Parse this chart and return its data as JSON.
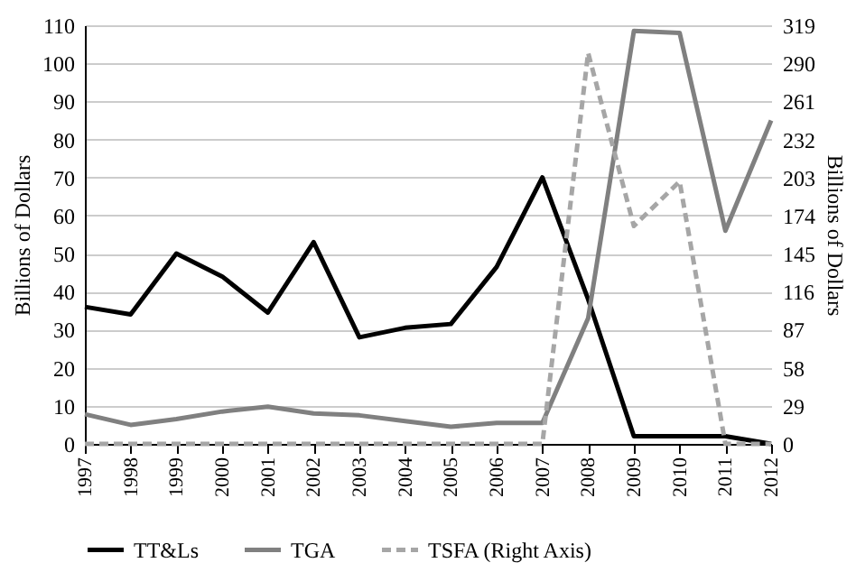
{
  "chart_data": {
    "type": "line",
    "ylabel": "Billions of Dollars",
    "y2label": "Billions of Dollars",
    "categories": [
      "1997",
      "1998",
      "1999",
      "2000",
      "2001",
      "2002",
      "2003",
      "2004",
      "2005",
      "2006",
      "2007",
      "2008",
      "2009",
      "2010",
      "2011",
      "2012"
    ],
    "series": [
      {
        "name": "TT&Ls",
        "color": "#000000",
        "line_style": "solid",
        "values": [
          36,
          34,
          50,
          44,
          34.5,
          53,
          28,
          30.5,
          31.5,
          46.5,
          70,
          38,
          2,
          2,
          2,
          0
        ]
      },
      {
        "name": "TGA",
        "color": "#808080",
        "line_style": "solid",
        "values": [
          7.8,
          5,
          6.5,
          8.5,
          9.8,
          8,
          7.5,
          6,
          4.5,
          5.5,
          5.5,
          33,
          108.5,
          108,
          56,
          85
        ]
      },
      {
        "name": "TSFA (Right Axis)",
        "color": "#a6a6a6",
        "line_style": "dashed",
        "axis": "y2",
        "values": [
          0,
          0,
          0,
          0,
          0,
          0,
          0,
          0,
          0,
          0,
          0,
          298,
          166,
          200,
          0,
          0
        ]
      }
    ],
    "ylim": [
      0,
      110
    ],
    "yticks": [
      0,
      10,
      20,
      30,
      40,
      50,
      60,
      70,
      80,
      90,
      100,
      110
    ],
    "y2lim": [
      0,
      319
    ],
    "y2ticks": [
      0,
      29,
      58,
      87,
      116,
      145,
      174,
      203,
      232,
      261,
      290,
      319
    ],
    "grid": "y",
    "legend": "bottom"
  }
}
